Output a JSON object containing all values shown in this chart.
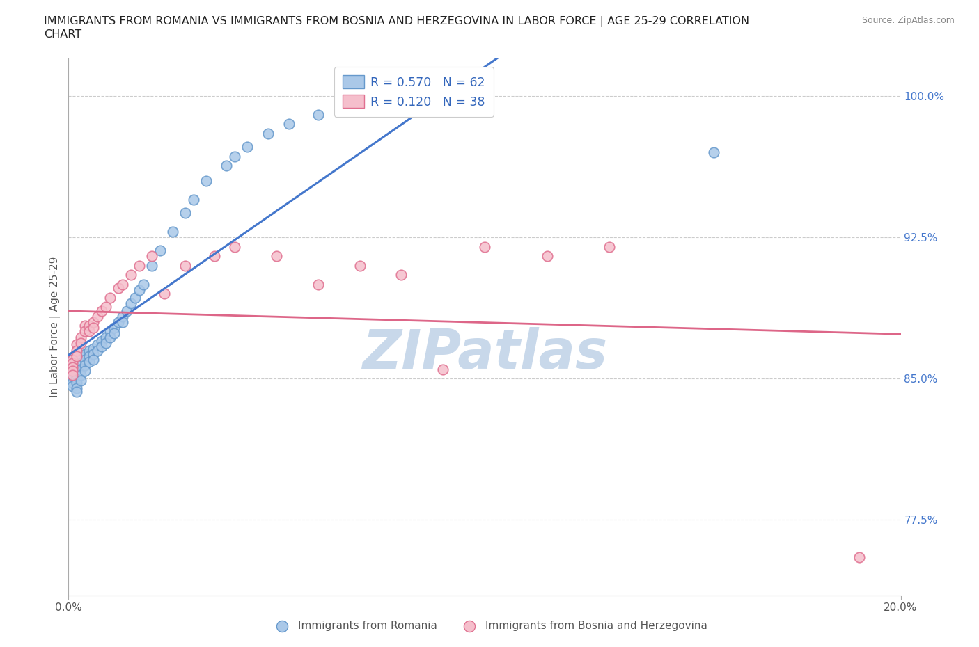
{
  "title_line1": "IMMIGRANTS FROM ROMANIA VS IMMIGRANTS FROM BOSNIA AND HERZEGOVINA IN LABOR FORCE | AGE 25-29 CORRELATION",
  "title_line2": "CHART",
  "source_text": "Source: ZipAtlas.com",
  "ylabel": "In Labor Force | Age 25-29",
  "xlim": [
    0.0,
    0.2
  ],
  "ylim": [
    0.735,
    1.02
  ],
  "xtick_positions": [
    0.0,
    0.2
  ],
  "xtick_labels": [
    "0.0%",
    "20.0%"
  ],
  "ytick_values": [
    0.775,
    0.85,
    0.925,
    1.0
  ],
  "ytick_labels": [
    "77.5%",
    "85.0%",
    "92.5%",
    "100.0%"
  ],
  "romania_color": "#aac8e8",
  "romania_edge": "#6699cc",
  "bosnia_color": "#f5bfcc",
  "bosnia_edge": "#e07090",
  "line_romania_color": "#4477cc",
  "line_bosnia_color": "#dd6688",
  "R_romania": 0.57,
  "N_romania": 62,
  "R_bosnia": 0.12,
  "N_bosnia": 38,
  "legend_text_color": "#3366bb",
  "watermark": "ZIPatlas",
  "watermark_color": "#c8d8ea",
  "romania_x": [
    0.001,
    0.001,
    0.001,
    0.001,
    0.001,
    0.001,
    0.001,
    0.001,
    0.002,
    0.002,
    0.002,
    0.002,
    0.002,
    0.002,
    0.003,
    0.003,
    0.003,
    0.003,
    0.003,
    0.004,
    0.004,
    0.004,
    0.004,
    0.005,
    0.005,
    0.005,
    0.006,
    0.006,
    0.006,
    0.007,
    0.007,
    0.008,
    0.008,
    0.009,
    0.009,
    0.01,
    0.01,
    0.011,
    0.011,
    0.012,
    0.013,
    0.013,
    0.014,
    0.015,
    0.016,
    0.017,
    0.018,
    0.02,
    0.022,
    0.025,
    0.028,
    0.03,
    0.033,
    0.038,
    0.04,
    0.043,
    0.048,
    0.053,
    0.06,
    0.065,
    0.07,
    0.155
  ],
  "romania_y": [
    0.86,
    0.858,
    0.856,
    0.854,
    0.852,
    0.85,
    0.848,
    0.846,
    0.855,
    0.852,
    0.85,
    0.848,
    0.845,
    0.843,
    0.862,
    0.858,
    0.855,
    0.852,
    0.849,
    0.863,
    0.86,
    0.857,
    0.854,
    0.865,
    0.862,
    0.859,
    0.866,
    0.863,
    0.86,
    0.868,
    0.865,
    0.87,
    0.867,
    0.872,
    0.869,
    0.875,
    0.872,
    0.877,
    0.874,
    0.88,
    0.883,
    0.88,
    0.886,
    0.89,
    0.893,
    0.897,
    0.9,
    0.91,
    0.918,
    0.928,
    0.938,
    0.945,
    0.955,
    0.963,
    0.968,
    0.973,
    0.98,
    0.985,
    0.99,
    0.995,
    1.0,
    0.97
  ],
  "bosnia_x": [
    0.001,
    0.001,
    0.001,
    0.001,
    0.001,
    0.002,
    0.002,
    0.002,
    0.003,
    0.003,
    0.004,
    0.004,
    0.005,
    0.005,
    0.006,
    0.006,
    0.007,
    0.008,
    0.009,
    0.01,
    0.012,
    0.013,
    0.015,
    0.017,
    0.02,
    0.023,
    0.028,
    0.035,
    0.04,
    0.05,
    0.06,
    0.07,
    0.08,
    0.09,
    0.1,
    0.115,
    0.13,
    0.19
  ],
  "bosnia_y": [
    0.86,
    0.858,
    0.856,
    0.854,
    0.852,
    0.868,
    0.865,
    0.862,
    0.872,
    0.869,
    0.878,
    0.875,
    0.878,
    0.875,
    0.88,
    0.877,
    0.883,
    0.886,
    0.888,
    0.893,
    0.898,
    0.9,
    0.905,
    0.91,
    0.915,
    0.895,
    0.91,
    0.915,
    0.92,
    0.915,
    0.9,
    0.91,
    0.905,
    0.855,
    0.92,
    0.915,
    0.92,
    0.755
  ]
}
